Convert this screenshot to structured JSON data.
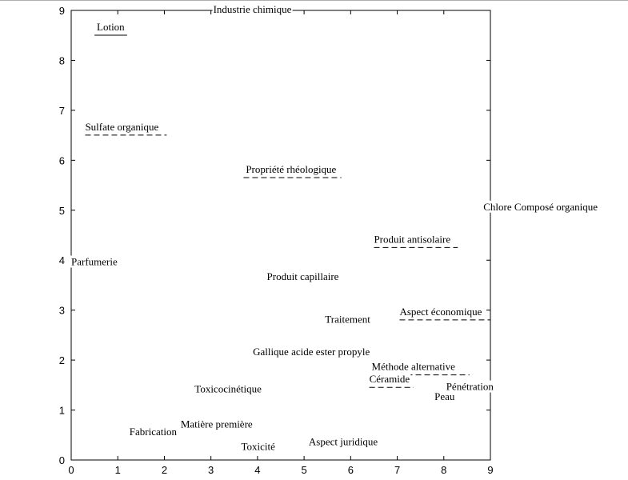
{
  "chart_data": {
    "type": "scatter",
    "title": "",
    "xlabel": "",
    "ylabel": "",
    "xlim": [
      0,
      9
    ],
    "ylim": [
      0,
      9
    ],
    "xticks": [
      "0",
      "1",
      "2",
      "3",
      "4",
      "5",
      "6",
      "7",
      "8",
      "9"
    ],
    "yticks": [
      "0",
      "1",
      "2",
      "3",
      "4",
      "5",
      "6",
      "7",
      "8",
      "9"
    ],
    "grid": false,
    "points": [
      {
        "label": "Lotion",
        "x": 0.55,
        "y": 8.6,
        "underline": "solid",
        "ux": [
          0.5,
          1.2
        ]
      },
      {
        "label": "Industrie chimique",
        "x": 3.05,
        "y": 8.95
      },
      {
        "label": "Sulfate organique",
        "x": 0.3,
        "y": 6.6,
        "underline": "dashed",
        "ux": [
          0.3,
          2.05
        ]
      },
      {
        "label": "Propriété rhéologique",
        "x": 3.75,
        "y": 5.75,
        "underline": "dashed",
        "ux": [
          3.7,
          5.8
        ]
      },
      {
        "label": "Chlore Composé organique",
        "x": 8.85,
        "y": 5.0
      },
      {
        "label": "Produit antisolaire",
        "x": 6.5,
        "y": 4.35,
        "underline": "dashed",
        "ux": [
          6.5,
          8.3
        ]
      },
      {
        "label": "Parfumerie",
        "x": 0.0,
        "y": 3.9
      },
      {
        "label": "Produit capillaire",
        "x": 4.2,
        "y": 3.6
      },
      {
        "label": "Aspect économique",
        "x": 7.05,
        "y": 2.9,
        "underline": "dashed",
        "ux": [
          7.05,
          9.0
        ]
      },
      {
        "label": "Traitement",
        "x": 5.45,
        "y": 2.75
      },
      {
        "label": "Gallique acide ester propyle",
        "x": 3.9,
        "y": 2.1
      },
      {
        "label": "Méthode alternative",
        "x": 6.45,
        "y": 1.8,
        "underline": "dashed",
        "ux": [
          6.45,
          8.55
        ]
      },
      {
        "label": "Céramide",
        "x": 6.4,
        "y": 1.55,
        "underline": "dashed",
        "ux": [
          6.4,
          7.35
        ]
      },
      {
        "label": "Pénétration",
        "x": 8.05,
        "y": 1.4
      },
      {
        "label": "Peau",
        "x": 7.8,
        "y": 1.2
      },
      {
        "label": "Toxicocinétique",
        "x": 2.65,
        "y": 1.35
      },
      {
        "label": "Matière première",
        "x": 2.35,
        "y": 0.65
      },
      {
        "label": "Fabrication",
        "x": 1.25,
        "y": 0.5
      },
      {
        "label": "Aspect juridique",
        "x": 5.1,
        "y": 0.3
      },
      {
        "label": "Toxicité",
        "x": 3.65,
        "y": 0.2
      }
    ]
  }
}
